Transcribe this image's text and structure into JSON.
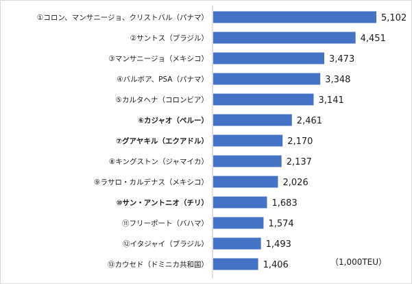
{
  "chart_data": {
    "type": "bar",
    "orientation": "horizontal",
    "unit_label": "（1,000TEU）",
    "xlim": [
      0,
      5400
    ],
    "bar_color": "#4472C4",
    "categories": [
      "①コロン、マンサニージョ、クリストバル（パナマ）",
      "②サントス（ブラジル）",
      "③マンサニージョ（メキシコ）",
      "④バルボア、PSA（パナマ）",
      "⑤カルタヘナ（コロンビア）",
      "⑥カジャオ（ペルー）",
      "⑦グアヤキル（エクアドル）",
      "⑧キングストン（ジャマイカ）",
      "⑨ラサロ・カルデナス（メキシコ）",
      "⑩サン・アントニオ（チリ）",
      "⑪フリーポート（バハマ）",
      "⑫イタジャイ（ブラジル）",
      "⑬カウセド（ドミニカ共和国）"
    ],
    "values": [
      5102,
      4451,
      3473,
      3348,
      3141,
      2461,
      2170,
      2137,
      2026,
      1683,
      1574,
      1493,
      1406
    ],
    "value_labels": [
      "5,102",
      "4,451",
      "3,473",
      "3,348",
      "3,141",
      "2,461",
      "2,170",
      "2,137",
      "2,026",
      "1,683",
      "1,574",
      "1,493",
      "1,406"
    ],
    "bold_categories": [
      5,
      6,
      9
    ]
  }
}
